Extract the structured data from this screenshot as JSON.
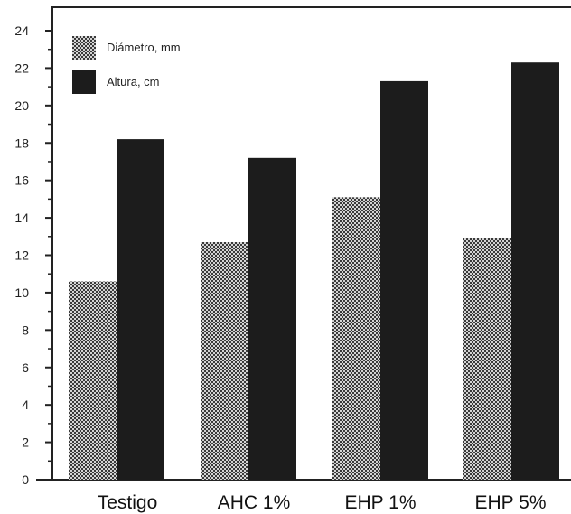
{
  "chart_data": {
    "type": "bar",
    "categories": [
      "Testigo",
      "AHC 1%",
      "EHP 1%",
      "EHP 5%"
    ],
    "series": [
      {
        "name": "Diámetro, mm",
        "values": [
          10.6,
          12.7,
          15.1,
          12.9
        ],
        "pattern": "checkered",
        "color": "#8a8a8a"
      },
      {
        "name": "Altura, cm",
        "values": [
          18.2,
          17.2,
          21.3,
          22.3
        ],
        "pattern": "solid",
        "color": "#1c1c1c"
      }
    ],
    "title": "",
    "xlabel": "",
    "ylabel": "",
    "ylim": [
      0,
      24
    ],
    "yticks": [
      0,
      2,
      4,
      6,
      8,
      10,
      12,
      14,
      16,
      18,
      20,
      22,
      24
    ],
    "grid": false,
    "legend_position": "top-left"
  }
}
